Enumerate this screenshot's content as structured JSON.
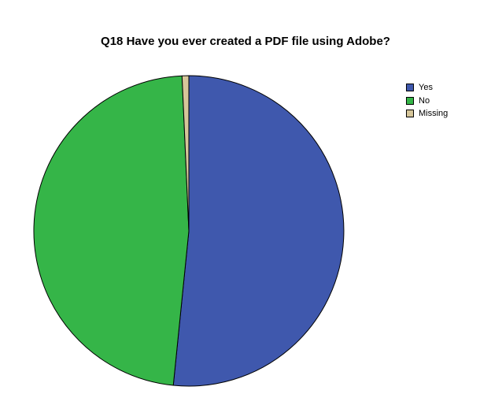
{
  "chart_data": {
    "type": "pie",
    "title": "Q18 Have you ever created a PDF file using Adobe?",
    "categories": [
      "Yes",
      "No",
      "Missing"
    ],
    "values": [
      51.6,
      47.7,
      0.7
    ],
    "colors": [
      "#3f58ad",
      "#35b548",
      "#d6c69a"
    ],
    "legend_position": "top-right"
  }
}
